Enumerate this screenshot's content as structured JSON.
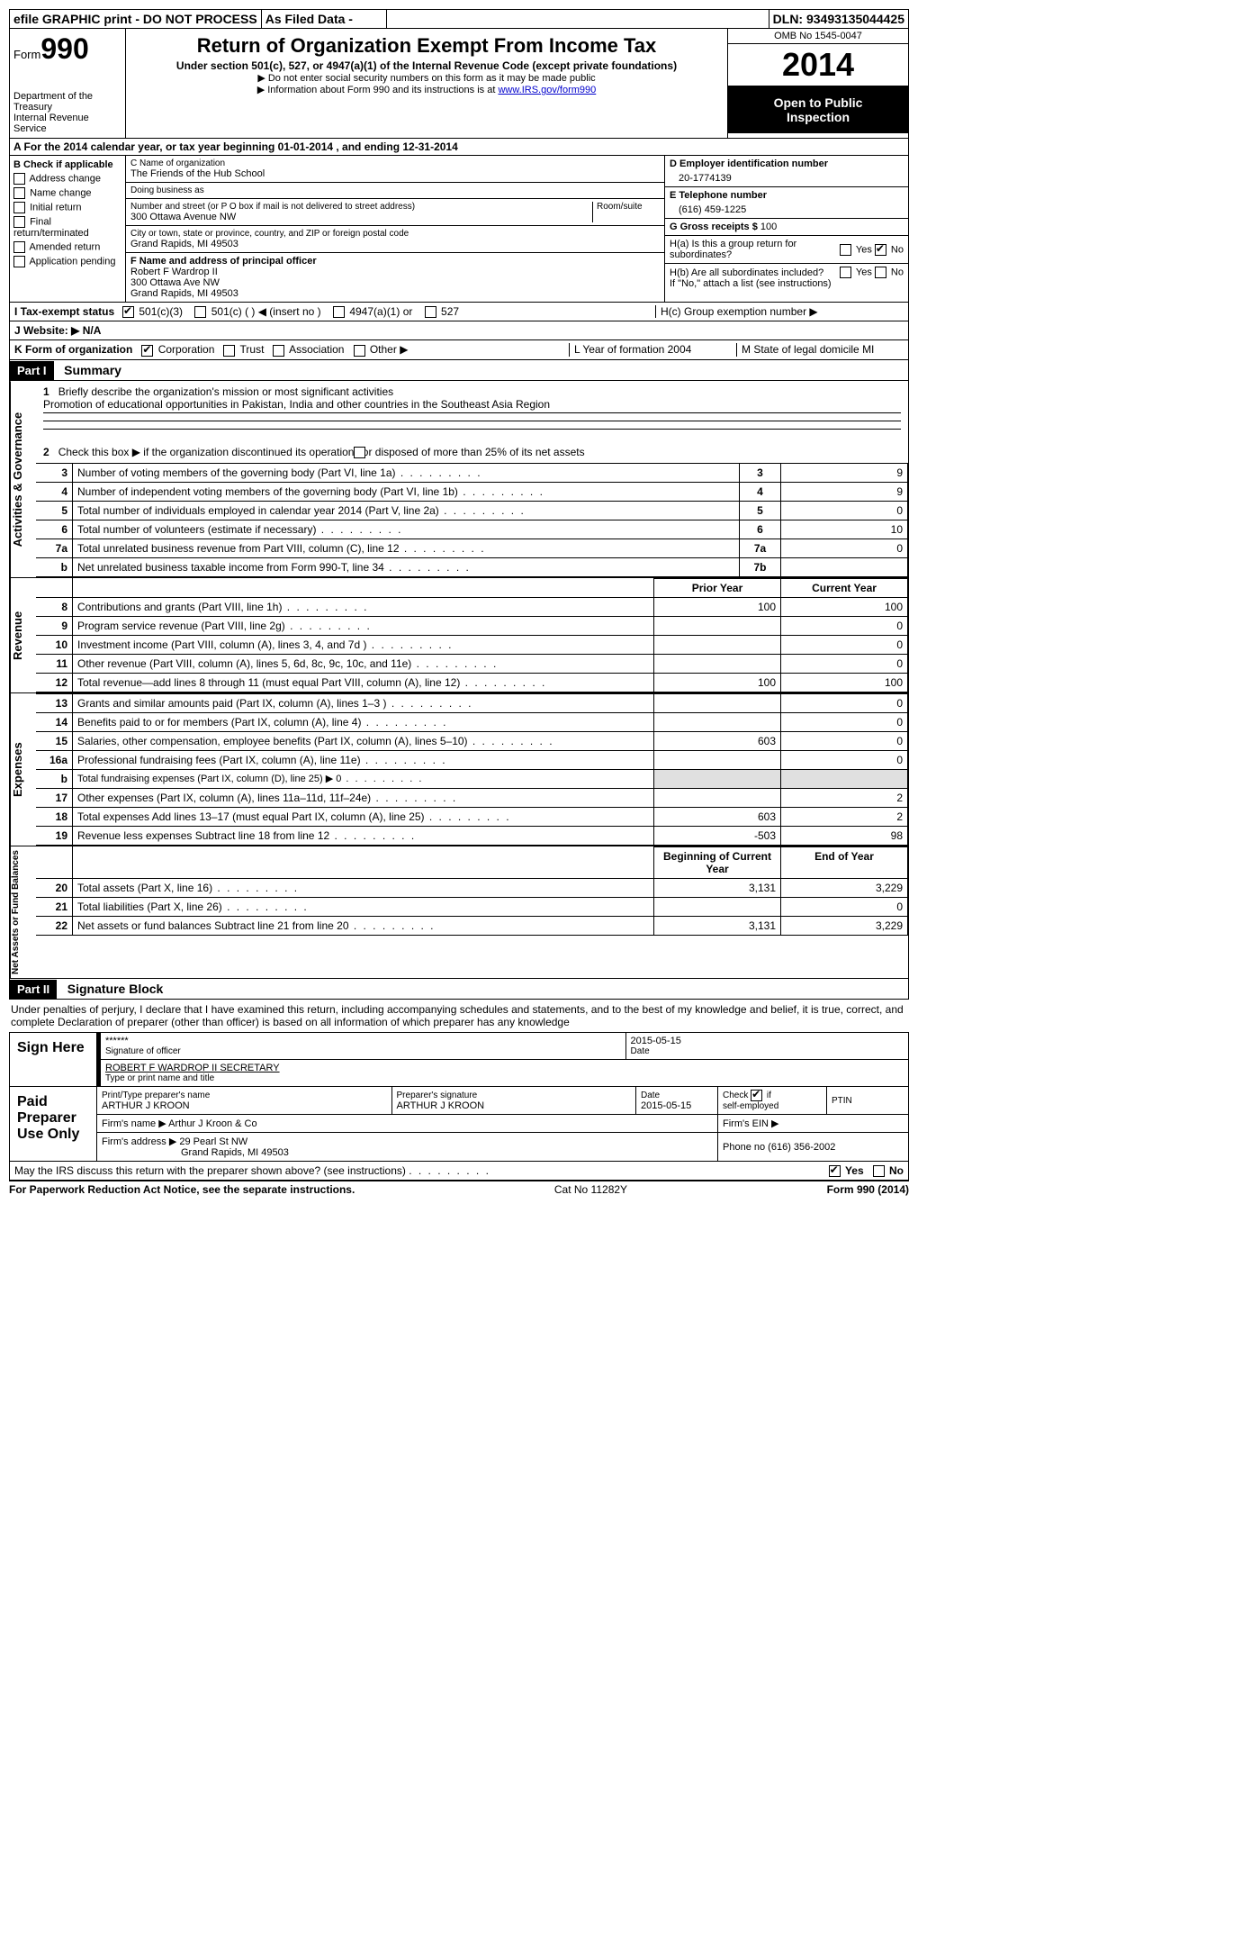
{
  "topbar": {
    "efile": "efile GRAPHIC print - DO NOT PROCESS",
    "asfiled": "As Filed Data -",
    "dln_label": "DLN:",
    "dln": "93493135044425"
  },
  "header": {
    "form_label": "Form",
    "form_number": "990",
    "dept1": "Department of the Treasury",
    "dept2": "Internal Revenue Service",
    "title": "Return of Organization Exempt From Income Tax",
    "subtitle": "Under section 501(c), 527, or 4947(a)(1) of the Internal Revenue Code (except private foundations)",
    "note1": "▶ Do not enter social security numbers on this form as it may be made public",
    "note2_pre": "▶ Information about Form 990 and its instructions is at ",
    "note2_link": "www.IRS.gov/form990",
    "omb": "OMB No 1545-0047",
    "year": "2014",
    "open1": "Open to Public",
    "open2": "Inspection"
  },
  "line_a": "A For the 2014 calendar year, or tax year beginning 01-01-2014    , and ending 12-31-2014",
  "col_b": {
    "title": "B Check if applicable",
    "items": [
      "Address change",
      "Name change",
      "Initial return",
      "Final return/terminated",
      "Amended return",
      "Application pending"
    ]
  },
  "col_c": {
    "name_label": "C Name of organization",
    "name": "The Friends of the Hub School",
    "dba_label": "Doing business as",
    "dba": "",
    "street_label": "Number and street (or P O  box if mail is not delivered to street address)",
    "street": "300 Ottawa Avenue NW",
    "room_label": "Room/suite",
    "city_label": "City or town, state or province, country, and ZIP or foreign postal code",
    "city": "Grand Rapids, MI  49503",
    "f_label": "F  Name and address of principal officer",
    "f_name": "Robert F Wardrop II",
    "f_street": "300 Ottawa Ave NW",
    "f_city": "Grand Rapids, MI  49503"
  },
  "col_d": {
    "d_label": "D Employer identification number",
    "d_val": "20-1774139",
    "e_label": "E Telephone number",
    "e_val": "(616) 459-1225",
    "g_label": "G Gross receipts $",
    "g_val": "100",
    "ha_label": "H(a)  Is this a group return for subordinates?",
    "hb_label": "H(b)  Are all subordinates included?",
    "hb_note": "If \"No,\" attach a list  (see instructions)",
    "hc_label": "H(c)   Group exemption number ▶"
  },
  "row_i": {
    "label": "I  Tax-exempt status",
    "opts": [
      "501(c)(3)",
      "501(c) (   ) ◀ (insert no )",
      "4947(a)(1) or",
      "527"
    ]
  },
  "row_j": "J  Website: ▶  N/A",
  "row_k": {
    "left_label": "K Form of organization",
    "opts": [
      "Corporation",
      "Trust",
      "Association",
      "Other ▶"
    ],
    "l": "L Year of formation  2004",
    "m": "M State of legal domicile  MI"
  },
  "part1": {
    "header": "Part I",
    "title": "Summary",
    "line1_label": "1",
    "line1_text": "Briefly describe the organization's mission or most significant activities",
    "line1_val": "Promotion of educational opportunities in Pakistan, India and other countries in the Southeast Asia Region",
    "line2_label": "2",
    "line2_text": "Check this box ▶       if the organization discontinued its operations or disposed of more than 25% of its net assets",
    "vlabel1": "Activities & Governance",
    "rows_gov": [
      {
        "n": "3",
        "desc": "Number of voting members of the governing body (Part VI, line 1a)",
        "ln": "3",
        "val": "9"
      },
      {
        "n": "4",
        "desc": "Number of independent voting members of the governing body (Part VI, line 1b)",
        "ln": "4",
        "val": "9"
      },
      {
        "n": "5",
        "desc": "Total number of individuals employed in calendar year 2014 (Part V, line 2a)",
        "ln": "5",
        "val": "0"
      },
      {
        "n": "6",
        "desc": "Total number of volunteers (estimate if necessary)",
        "ln": "6",
        "val": "10"
      },
      {
        "n": "7a",
        "desc": "Total unrelated business revenue from Part VIII, column (C), line 12",
        "ln": "7a",
        "val": "0"
      },
      {
        "n": "b",
        "desc": "Net unrelated business taxable income from Form 990-T, line 34",
        "ln": "7b",
        "val": ""
      }
    ],
    "hdr_prior": "Prior Year",
    "hdr_current": "Current Year",
    "vlabel2": "Revenue",
    "rows_rev": [
      {
        "n": "8",
        "desc": "Contributions and grants (Part VIII, line 1h)",
        "py": "100",
        "cy": "100"
      },
      {
        "n": "9",
        "desc": "Program service revenue (Part VIII, line 2g)",
        "py": "",
        "cy": "0"
      },
      {
        "n": "10",
        "desc": "Investment income (Part VIII, column (A), lines 3, 4, and 7d )",
        "py": "",
        "cy": "0"
      },
      {
        "n": "11",
        "desc": "Other revenue (Part VIII, column (A), lines 5, 6d, 8c, 9c, 10c, and 11e)",
        "py": "",
        "cy": "0"
      },
      {
        "n": "12",
        "desc": "Total revenue—add lines 8 through 11 (must equal Part VIII, column (A), line 12)",
        "py": "100",
        "cy": "100"
      }
    ],
    "vlabel3": "Expenses",
    "rows_exp": [
      {
        "n": "13",
        "desc": "Grants and similar amounts paid (Part IX, column (A), lines 1–3 )",
        "py": "",
        "cy": "0"
      },
      {
        "n": "14",
        "desc": "Benefits paid to or for members (Part IX, column (A), line 4)",
        "py": "",
        "cy": "0"
      },
      {
        "n": "15",
        "desc": "Salaries, other compensation, employee benefits (Part IX, column (A), lines 5–10)",
        "py": "603",
        "cy": "0"
      },
      {
        "n": "16a",
        "desc": "Professional fundraising fees (Part IX, column (A), line 11e)",
        "py": "",
        "cy": "0"
      },
      {
        "n": "b",
        "desc": "Total fundraising expenses (Part IX, column (D), line 25) ▶ 0",
        "py": "shade",
        "cy": "shade"
      },
      {
        "n": "17",
        "desc": "Other expenses (Part IX, column (A), lines 11a–11d, 11f–24e)",
        "py": "",
        "cy": "2"
      },
      {
        "n": "18",
        "desc": "Total expenses  Add lines 13–17 (must equal Part IX, column (A), line 25)",
        "py": "603",
        "cy": "2"
      },
      {
        "n": "19",
        "desc": "Revenue less expenses  Subtract line 18 from line 12",
        "py": "-503",
        "cy": "98"
      }
    ],
    "hdr_begin": "Beginning of Current Year",
    "hdr_end": "End of Year",
    "vlabel4": "Net Assets or Fund Balances",
    "rows_net": [
      {
        "n": "20",
        "desc": "Total assets (Part X, line 16)",
        "py": "3,131",
        "cy": "3,229"
      },
      {
        "n": "21",
        "desc": "Total liabilities (Part X, line 26)",
        "py": "",
        "cy": "0"
      },
      {
        "n": "22",
        "desc": "Net assets or fund balances  Subtract line 21 from line 20",
        "py": "3,131",
        "cy": "3,229"
      }
    ]
  },
  "part2": {
    "header": "Part II",
    "title": "Signature Block",
    "declaration": "Under penalties of perjury, I declare that I have examined this return, including accompanying schedules and statements, and to the best of my knowledge and belief, it is true, correct, and complete  Declaration of preparer (other than officer) is based on all information of which preparer has any knowledge",
    "sign_here": "Sign Here",
    "sig_stars": "******",
    "sig_date": "2015-05-15",
    "sig_of_officer": "Signature of officer",
    "date_label": "Date",
    "officer_name": "ROBERT F WARDROP II SECRETARY",
    "type_name_label": "Type or print name and title",
    "paid_preparer": "Paid Preparer Use Only",
    "prep_name_label": "Print/Type preparer's name",
    "prep_name": "ARTHUR J KROON",
    "prep_sig_label": "Preparer's signature",
    "prep_sig": "ARTHUR J KROON",
    "prep_date_label": "Date",
    "prep_date": "2015-05-15",
    "check_self": "Check         if self-employed",
    "ptin_label": "PTIN",
    "firm_name_label": "Firm's name    ▶",
    "firm_name": "Arthur J Kroon & Co",
    "firm_ein_label": "Firm's EIN ▶",
    "firm_addr_label": "Firm's address ▶",
    "firm_addr1": "29 Pearl St NW",
    "firm_addr2": "Grand Rapids, MI  49503",
    "firm_phone_label": "Phone no",
    "firm_phone": "(616) 356-2002",
    "may_irs": "May the IRS discuss this return with the preparer shown above? (see instructions)"
  },
  "footer": {
    "left": "For Paperwork Reduction Act Notice, see the separate instructions.",
    "mid": "Cat No 11282Y",
    "right": "Form 990 (2014)"
  }
}
